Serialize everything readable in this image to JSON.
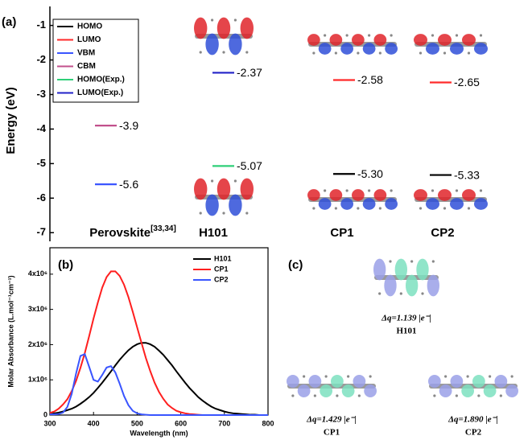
{
  "chart_data": [
    {
      "type": "level",
      "panel_label": "(a)",
      "y_label": "Energy (eV)",
      "categories": [
        "Perovskite",
        "H101",
        "CP1",
        "CP2"
      ],
      "category_notes": [
        "[33,34]",
        null,
        null,
        null
      ],
      "ylim": [
        -7.25,
        -0.45
      ],
      "yticks": [
        -1,
        -2,
        -3,
        -4,
        -5,
        -6,
        -7
      ],
      "legend": "top-left",
      "series": [
        {
          "name": "HOMO",
          "color": "#000000",
          "values": [
            null,
            null,
            -5.3,
            -5.33
          ],
          "value_labels": [
            null,
            null,
            "-5.30",
            "-5.33"
          ]
        },
        {
          "name": "LUMO",
          "color": "#ff2a2a",
          "values": [
            null,
            null,
            -2.58,
            -2.65
          ]
        },
        {
          "name": "VBM",
          "color": "#3a55ff",
          "values": [
            -5.6,
            null,
            null,
            null
          ]
        },
        {
          "name": "CBM",
          "color": "#c2508c",
          "values": [
            -3.9,
            null,
            null,
            null
          ]
        },
        {
          "name": "HOMO(Exp.)",
          "color": "#2fcf78",
          "label_color": "#000000",
          "values": [
            null,
            -5.07,
            null,
            null
          ]
        },
        {
          "name": "LUMO(Exp.)",
          "color": "#2222c8",
          "label_color": "#ff2a2a",
          "values": [
            null,
            -2.37,
            null,
            null
          ]
        }
      ]
    },
    {
      "type": "line",
      "panel_label": "(b)",
      "x_label": "Wavelength (nm)",
      "y_label": "Molar Absorbance (L.mol⁻¹cm⁻¹)",
      "x": [
        300,
        310,
        320,
        330,
        340,
        350,
        360,
        370,
        380,
        390,
        400,
        410,
        420,
        430,
        440,
        450,
        460,
        470,
        480,
        490,
        500,
        510,
        520,
        530,
        540,
        550,
        560,
        570,
        580,
        590,
        600,
        610,
        620,
        630,
        640,
        650,
        660,
        670,
        680,
        690,
        700,
        710,
        720,
        730,
        740,
        750,
        760,
        770,
        780,
        790,
        800
      ],
      "xlim": [
        300,
        800
      ],
      "xticks": [
        300,
        400,
        500,
        600,
        700,
        800
      ],
      "ylim": [
        0,
        4750000
      ],
      "yticks": [
        0,
        {
          "value": 1000000,
          "label": "1x10⁶"
        },
        {
          "value": 2000000,
          "label": "2x10⁶"
        },
        {
          "value": 3000000,
          "label": "3x10⁶"
        },
        {
          "value": 4000000,
          "label": "4x10⁶"
        }
      ],
      "legend": "top-right",
      "series": [
        {
          "name": "H101",
          "color": "#000000",
          "values": [
            30000,
            50000,
            70000,
            100000,
            140000,
            180000,
            240000,
            320000,
            410000,
            510000,
            630000,
            770000,
            920000,
            1080000,
            1240000,
            1410000,
            1570000,
            1710000,
            1840000,
            1940000,
            2010000,
            2050000,
            2050000,
            2010000,
            1940000,
            1830000,
            1710000,
            1560000,
            1410000,
            1240000,
            1080000,
            920000,
            770000,
            640000,
            510000,
            410000,
            320000,
            240000,
            180000,
            140000,
            100000,
            70000,
            50000,
            40000,
            30000,
            20000,
            10000,
            10000,
            0,
            0,
            0
          ]
        },
        {
          "name": "CP1",
          "color": "#ff1f1f",
          "values": [
            60000,
            100000,
            180000,
            300000,
            450000,
            680000,
            970000,
            1340000,
            1760000,
            2240000,
            2740000,
            3200000,
            3620000,
            3920000,
            4080000,
            4080000,
            3950000,
            3700000,
            3350000,
            2930000,
            2490000,
            2050000,
            1620000,
            1250000,
            920000,
            660000,
            460000,
            300000,
            200000,
            120000,
            80000,
            50000,
            30000,
            20000,
            10000,
            0,
            0,
            0,
            0,
            0,
            0,
            0,
            0,
            0,
            0,
            0,
            0,
            0,
            0,
            0,
            0
          ]
        },
        {
          "name": "CP2",
          "color": "#3a55ff",
          "values": [
            20000,
            20000,
            30000,
            70000,
            230000,
            600000,
            1180000,
            1680000,
            1730000,
            1370000,
            1000000,
            950000,
            1140000,
            1350000,
            1390000,
            1210000,
            890000,
            540000,
            280000,
            120000,
            50000,
            20000,
            10000,
            0,
            0,
            0,
            0,
            0,
            0,
            0,
            0,
            0,
            0,
            0,
            0,
            0,
            0,
            0,
            0,
            0,
            0,
            0,
            0,
            0,
            0,
            0,
            0,
            0,
            0,
            0,
            0
          ]
        }
      ]
    }
  ],
  "panel_c": {
    "label": "(c)",
    "molecules": [
      {
        "charge": "Δq=1.139 |e⁻|",
        "name": "H101"
      },
      {
        "charge": "Δq=1.429 |e⁻|",
        "name": "CP1"
      },
      {
        "charge": "Δq=1.890 |e⁻|",
        "name": "CP2"
      }
    ]
  }
}
